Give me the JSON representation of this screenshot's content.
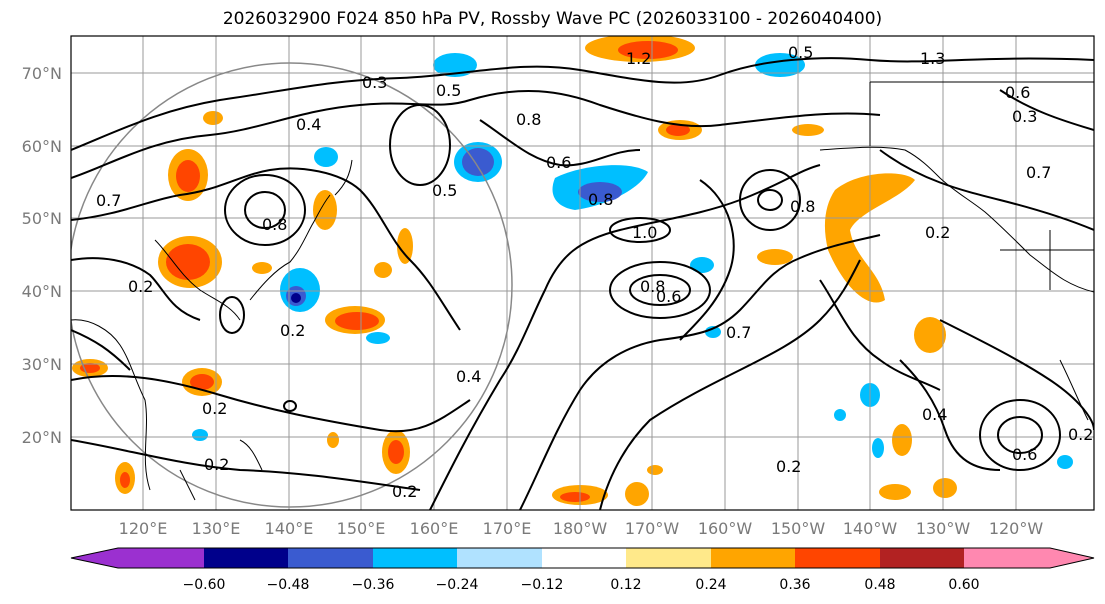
{
  "title": "2026032900 F024 850 hPa PV, Rossby Wave PC (2026033100 - 2026040400)",
  "lat_labels": [
    "70°N",
    "60°N",
    "50°N",
    "40°N",
    "30°N",
    "20°N"
  ],
  "lon_labels": [
    "120°E",
    "130°E",
    "140°E",
    "150°E",
    "160°E",
    "170°E",
    "180°W",
    "170°W",
    "160°W",
    "150°W",
    "140°W",
    "130°W",
    "120°W"
  ],
  "colorbar": {
    "ticks": [
      "−0.60",
      "−0.48",
      "−0.36",
      "−0.24",
      "−0.12",
      "0.12",
      "0.24",
      "0.36",
      "0.48",
      "0.60"
    ],
    "colors": [
      "#9b30d0",
      "#00008b",
      "#3a5bd0",
      "#00bfff",
      "#b0e2ff",
      "#ffffff",
      "#ffe98a",
      "#ffa500",
      "#ff4500",
      "#b22222",
      "#ff88b0"
    ]
  },
  "contour_labels": [
    "1.2",
    "0.3",
    "0.5",
    "0.4",
    "0.8",
    "0.6",
    "0.5",
    "0.8",
    "1.0",
    "0.8",
    "0.6",
    "0.7",
    "0.2",
    "0.2",
    "0.2",
    "0.2",
    "0.7",
    "0.8",
    "0.2",
    "0.4",
    "0.2",
    "0.2",
    "0.6",
    "0.7",
    "0.8",
    "1.3",
    "0.5",
    "0.6",
    "0.3",
    "0.2",
    "0.4"
  ]
}
